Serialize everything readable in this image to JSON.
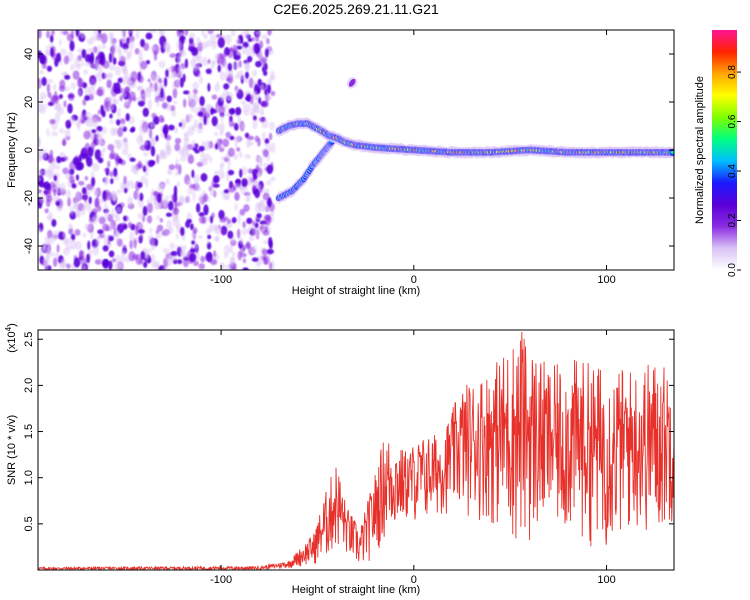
{
  "title": "C2E6.2025.269.21.11.G21",
  "colors": {
    "frame": "#000000",
    "snr_line": "#e8302a",
    "spectro_background_purple": "#8a2be2",
    "colormap": [
      "#ffffff",
      "#d9c2f5",
      "#8a2be2",
      "#5a00d8",
      "#1a1aff",
      "#00bfff",
      "#00ff80",
      "#7fff00",
      "#ffff00",
      "#ffa500",
      "#ff2200",
      "#ff1493"
    ]
  },
  "chart_data": [
    {
      "type": "heatmap",
      "name": "spectrogram",
      "xlabel": "Height of straight line (km)",
      "ylabel": "Frequency (Hz)",
      "xlim": [
        -195,
        135
      ],
      "ylim": [
        -50,
        50
      ],
      "xticks": [
        -100,
        0,
        100
      ],
      "xtick_labels": [
        "-100",
        "0",
        "100"
      ],
      "yticks": [
        -40,
        -20,
        0,
        20,
        40
      ],
      "ytick_labels": [
        "-40",
        "-20",
        "0",
        "20",
        "40"
      ],
      "noise_region_x": [
        -195,
        -73
      ],
      "signal_trace": [
        {
          "x": -70,
          "y": 8
        },
        {
          "x": -65,
          "y": 10
        },
        {
          "x": -60,
          "y": 11
        },
        {
          "x": -55,
          "y": 11
        },
        {
          "x": -48,
          "y": 8
        },
        {
          "x": -44,
          "y": 6
        },
        {
          "x": -40,
          "y": 5
        },
        {
          "x": -35,
          "y": 3
        },
        {
          "x": -30,
          "y": 2
        },
        {
          "x": -20,
          "y": 1
        },
        {
          "x": -10,
          "y": 0.5
        },
        {
          "x": 0,
          "y": 0
        },
        {
          "x": 20,
          "y": -1
        },
        {
          "x": 40,
          "y": -1
        },
        {
          "x": 60,
          "y": 0
        },
        {
          "x": 80,
          "y": -1
        },
        {
          "x": 100,
          "y": -1
        },
        {
          "x": 120,
          "y": -1
        },
        {
          "x": 135,
          "y": -1
        }
      ],
      "secondary_trace": [
        {
          "x": -70,
          "y": -20
        },
        {
          "x": -63,
          "y": -17
        },
        {
          "x": -57,
          "y": -12
        },
        {
          "x": -52,
          "y": -6
        },
        {
          "x": -48,
          "y": -2
        },
        {
          "x": -45,
          "y": 1
        },
        {
          "x": -42,
          "y": 4
        }
      ],
      "isolated_feature": {
        "x": -32,
        "y": 28
      },
      "colorbar": {
        "label": "Normalized spectral amplitude",
        "range": [
          0.0,
          0.97
        ],
        "ticks": [
          0.0,
          0.2,
          0.4,
          0.6,
          0.8
        ],
        "tick_labels": [
          "0.0",
          "0.2",
          "0.4",
          "0.6",
          "0.8"
        ]
      }
    },
    {
      "type": "line",
      "name": "snr",
      "xlabel": "Height of straight line (km)",
      "ylabel": "SNR (10 * v/v)",
      "multiplier_label": "(x10",
      "multiplier_exponent": "4",
      "xlim": [
        -195,
        135
      ],
      "ylim": [
        0,
        2.6
      ],
      "xticks": [
        -100,
        0,
        100
      ],
      "xtick_labels": [
        "-100",
        "0",
        "100"
      ],
      "yticks": [
        0.5,
        1.0,
        1.5,
        2.0,
        2.5
      ],
      "ytick_labels": [
        "0.5",
        "1.0",
        "1.5",
        "2.0",
        "2.5"
      ],
      "envelope": [
        {
          "x": -195,
          "lo": 0.0,
          "hi": 0.03
        },
        {
          "x": -80,
          "lo": 0.0,
          "hi": 0.04
        },
        {
          "x": -65,
          "lo": 0.02,
          "hi": 0.1
        },
        {
          "x": -52,
          "lo": 0.05,
          "hi": 0.4
        },
        {
          "x": -45,
          "lo": 0.1,
          "hi": 0.9
        },
        {
          "x": -40,
          "lo": 0.2,
          "hi": 1.2
        },
        {
          "x": -35,
          "lo": 0.15,
          "hi": 0.7
        },
        {
          "x": -28,
          "lo": 0.0,
          "hi": 0.45
        },
        {
          "x": -22,
          "lo": 0.1,
          "hi": 0.9
        },
        {
          "x": -15,
          "lo": 0.3,
          "hi": 1.5
        },
        {
          "x": -5,
          "lo": 0.5,
          "hi": 1.3
        },
        {
          "x": 5,
          "lo": 0.5,
          "hi": 1.45
        },
        {
          "x": 15,
          "lo": 0.6,
          "hi": 1.5
        },
        {
          "x": 25,
          "lo": 0.6,
          "hi": 2.0
        },
        {
          "x": 40,
          "lo": 0.5,
          "hi": 2.2
        },
        {
          "x": 55,
          "lo": 0.2,
          "hi": 2.6
        },
        {
          "x": 70,
          "lo": 0.4,
          "hi": 2.2
        },
        {
          "x": 85,
          "lo": 0.3,
          "hi": 2.3
        },
        {
          "x": 100,
          "lo": 0.2,
          "hi": 2.2
        },
        {
          "x": 115,
          "lo": 0.4,
          "hi": 2.2
        },
        {
          "x": 125,
          "lo": 0.3,
          "hi": 2.3
        },
        {
          "x": 135,
          "lo": 0.5,
          "hi": 2.2
        }
      ],
      "peak": {
        "x": 56,
        "y": 2.58
      }
    }
  ]
}
